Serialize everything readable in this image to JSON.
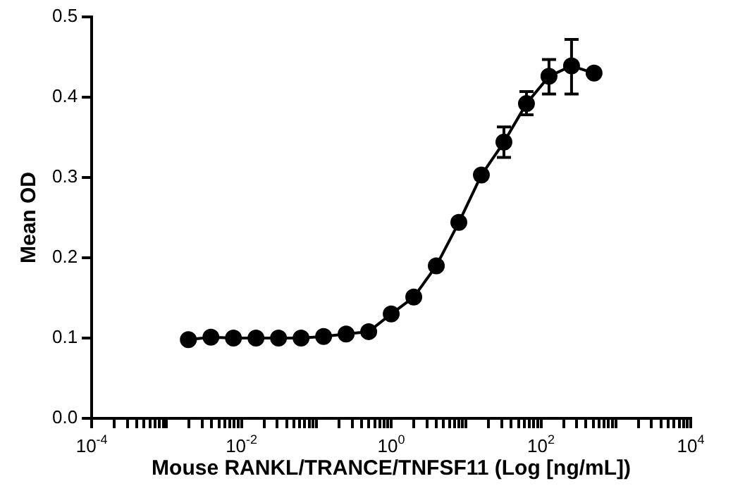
{
  "chart_data": {
    "type": "line",
    "xlabel": "Mouse RANKL/TRANCE/TNFSF11 (Log [ng/mL])",
    "ylabel": "Mean OD",
    "log": "x",
    "marker": "circle",
    "line_style": "solid",
    "grid": false,
    "legend": false,
    "x": [
      0.001953125,
      0.00390625,
      0.0078125,
      0.015625,
      0.03125,
      0.0625,
      0.125,
      0.25,
      0.5,
      1,
      2,
      4,
      8,
      16,
      32,
      64,
      128,
      256,
      512
    ],
    "series": [
      {
        "color": "#000000",
        "values": [
          0.098,
          0.101,
          0.1,
          0.1,
          0.1,
          0.1,
          0.102,
          0.105,
          0.108,
          0.13,
          0.151,
          0.19,
          0.244,
          0.303,
          0.344,
          0.392,
          0.426,
          0.439,
          0.43
        ],
        "errors": [
          null,
          null,
          null,
          null,
          null,
          null,
          null,
          null,
          null,
          null,
          null,
          null,
          null,
          null,
          [
            0.325,
            0.363
          ],
          [
            0.378,
            0.407
          ],
          [
            0.404,
            0.447
          ],
          [
            0.404,
            0.472
          ],
          null
        ]
      }
    ],
    "xlim": [
      0.0001,
      10000
    ],
    "ylim": [
      0,
      0.5
    ],
    "xticks": [
      {
        "value": 0.0001,
        "label": "10$^{-4}$"
      },
      {
        "value": 0.0002,
        "label": null
      },
      {
        "value": 0.0003,
        "label": null
      },
      {
        "value": 0.0004,
        "label": null
      },
      {
        "value": 0.0005,
        "label": null
      },
      {
        "value": 0.0006,
        "label": null
      },
      {
        "value": 0.0007,
        "label": null
      },
      {
        "value": 0.0008,
        "label": null
      },
      {
        "value": 0.0009,
        "label": null
      },
      {
        "value": 0.001,
        "label": null
      },
      {
        "value": 0.002,
        "label": null
      },
      {
        "value": 0.003,
        "label": null
      },
      {
        "value": 0.004,
        "label": null
      },
      {
        "value": 0.005,
        "label": null
      },
      {
        "value": 0.006,
        "label": null
      },
      {
        "value": 0.007,
        "label": null
      },
      {
        "value": 0.008,
        "label": null
      },
      {
        "value": 0.009,
        "label": null
      },
      {
        "value": 0.01,
        "label": "10$^{-2}$"
      },
      {
        "value": 0.02,
        "label": null
      },
      {
        "value": 0.03,
        "label": null
      },
      {
        "value": 0.04,
        "label": null
      },
      {
        "value": 0.05,
        "label": null
      },
      {
        "value": 0.06,
        "label": null
      },
      {
        "value": 0.07,
        "label": null
      },
      {
        "value": 0.08,
        "label": null
      },
      {
        "value": 0.09,
        "label": null
      },
      {
        "value": 0.1,
        "label": null
      },
      {
        "value": 0.2,
        "label": null
      },
      {
        "value": 0.3,
        "label": null
      },
      {
        "value": 0.4,
        "label": null
      },
      {
        "value": 0.5,
        "label": null
      },
      {
        "value": 0.6,
        "label": null
      },
      {
        "value": 0.7,
        "label": null
      },
      {
        "value": 0.8,
        "label": null
      },
      {
        "value": 0.9,
        "label": null
      },
      {
        "value": 1,
        "label": "10$^{0}$"
      },
      {
        "value": 2,
        "label": null
      },
      {
        "value": 3,
        "label": null
      },
      {
        "value": 4,
        "label": null
      },
      {
        "value": 5,
        "label": null
      },
      {
        "value": 6,
        "label": null
      },
      {
        "value": 7,
        "label": null
      },
      {
        "value": 8,
        "label": null
      },
      {
        "value": 9,
        "label": null
      },
      {
        "value": 10,
        "label": null
      },
      {
        "value": 20,
        "label": null
      },
      {
        "value": 30,
        "label": null
      },
      {
        "value": 40,
        "label": null
      },
      {
        "value": 50,
        "label": null
      },
      {
        "value": 60,
        "label": null
      },
      {
        "value": 70,
        "label": null
      },
      {
        "value": 80,
        "label": null
      },
      {
        "value": 90,
        "label": null
      },
      {
        "value": 100,
        "label": "10$^{2}$"
      },
      {
        "value": 200,
        "label": null
      },
      {
        "value": 300,
        "label": null
      },
      {
        "value": 400,
        "label": null
      },
      {
        "value": 500,
        "label": null
      },
      {
        "value": 600,
        "label": null
      },
      {
        "value": 700,
        "label": null
      },
      {
        "value": 800,
        "label": null
      },
      {
        "value": 900,
        "label": null
      },
      {
        "value": 1000,
        "label": null
      },
      {
        "value": 2000,
        "label": null
      },
      {
        "value": 3000,
        "label": null
      },
      {
        "value": 4000,
        "label": null
      },
      {
        "value": 5000,
        "label": null
      },
      {
        "value": 6000,
        "label": null
      },
      {
        "value": 7000,
        "label": null
      },
      {
        "value": 8000,
        "label": null
      },
      {
        "value": 9000,
        "label": null
      },
      {
        "value": 10000,
        "label": "10$^{4}$"
      }
    ],
    "yticks": [
      {
        "value": 0,
        "label": "0.0"
      },
      {
        "value": 0.1,
        "label": "0.1"
      },
      {
        "value": 0.2,
        "label": "0.2"
      },
      {
        "value": 0.3,
        "label": "0.3"
      },
      {
        "value": 0.4,
        "label": "0.4"
      },
      {
        "value": 0.5,
        "label": "0.5"
      }
    ]
  }
}
